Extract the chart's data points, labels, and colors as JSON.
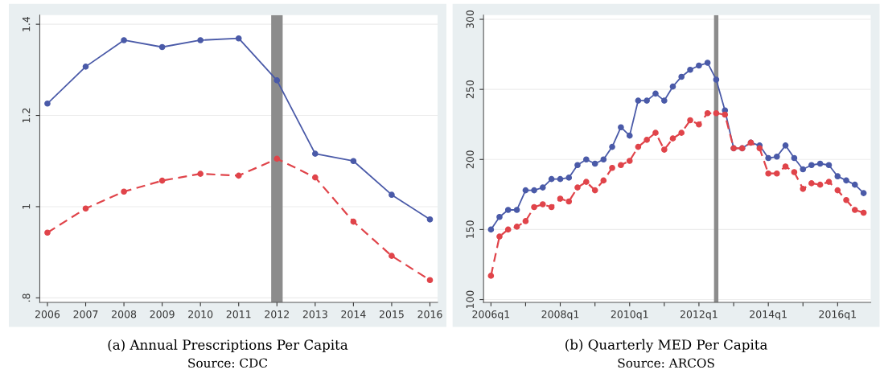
{
  "chart_data": [
    {
      "type": "line",
      "annotations": [
        "(a) Annual Prescriptions Per Capita",
        "Source: CDC"
      ],
      "x": [
        2006,
        2007,
        2008,
        2009,
        2010,
        2011,
        2012,
        2013,
        2014,
        2015,
        2016
      ],
      "series": [
        {
          "color": "#4a5aa8",
          "line_style": "solid",
          "values": [
            1.226,
            1.307,
            1.365,
            1.35,
            1.365,
            1.369,
            1.277,
            1.116,
            1.1,
            1.026,
            0.972
          ]
        },
        {
          "color": "#e0444a",
          "line_style": "dashed",
          "values": [
            0.943,
            0.996,
            1.033,
            1.057,
            1.072,
            1.068,
            1.105,
            1.064,
            0.967,
            0.892,
            0.839
          ]
        }
      ],
      "marker": "circle",
      "grid": "y",
      "xlim": [
        2005.8,
        2016.2
      ],
      "xticks": [
        2006,
        2007,
        2008,
        2009,
        2010,
        2011,
        2012,
        2013,
        2014,
        2015,
        2016
      ],
      "ylim": [
        0.79,
        1.42
      ],
      "yticks": [
        {
          "value": 0.8,
          "label": ".8"
        },
        1,
        1.2,
        1.4
      ],
      "bands": [
        {
          "axis": "x",
          "from": 2011.85,
          "to": 2012.15,
          "color": "#8c8c8c"
        }
      ]
    },
    {
      "type": "line",
      "annotations": [
        "(b) Quarterly MED Per Capita",
        "Source: ARCOS"
      ],
      "x": [
        "2006-01",
        "2006-04",
        "2006-07",
        "2006-10",
        "2007-01",
        "2007-04",
        "2007-07",
        "2007-10",
        "2008-01",
        "2008-04",
        "2008-07",
        "2008-10",
        "2009-01",
        "2009-04",
        "2009-07",
        "2009-10",
        "2010-01",
        "2010-04",
        "2010-07",
        "2010-10",
        "2011-01",
        "2011-04",
        "2011-07",
        "2011-10",
        "2012-01",
        "2012-04",
        "2012-07",
        "2012-10",
        "2013-01",
        "2013-04",
        "2013-07",
        "2013-10",
        "2014-01",
        "2014-04",
        "2014-07",
        "2014-10",
        "2015-01",
        "2015-04",
        "2015-07",
        "2015-10",
        "2016-01",
        "2016-04",
        "2016-07",
        "2016-10"
      ],
      "series": [
        {
          "color": "#4a5aa8",
          "line_style": "solid",
          "values": [
            150,
            159,
            164,
            164,
            178,
            178,
            180,
            186,
            186,
            187,
            196,
            200,
            197,
            200,
            209,
            223,
            217,
            242,
            242,
            247,
            242,
            252,
            259,
            264,
            267,
            269,
            257,
            235,
            208,
            208,
            212,
            210,
            201,
            202,
            210,
            201,
            193,
            196,
            197,
            196,
            188,
            185,
            182,
            176
          ]
        },
        {
          "color": "#e0444a",
          "line_style": "dashed",
          "values": [
            117,
            145,
            150,
            152,
            156,
            166,
            168,
            166,
            172,
            170,
            180,
            184,
            178,
            185,
            194,
            196,
            199,
            209,
            214,
            219,
            207,
            215,
            219,
            228,
            225,
            233,
            233,
            232,
            208,
            208,
            212,
            208,
            190,
            190,
            195,
            191,
            179,
            183,
            182,
            184,
            178,
            171,
            164,
            162
          ]
        }
      ],
      "marker": "circle",
      "grid": "y",
      "xlim": [
        "2005-10-15",
        "2016-12-15"
      ],
      "xticks": [
        {
          "value": "2006-01",
          "label": "2006q1"
        },
        {
          "value": "2007-01",
          "label": null
        },
        {
          "value": "2008-01",
          "label": "2008q1"
        },
        {
          "value": "2009-01",
          "label": null
        },
        {
          "value": "2010-01",
          "label": "2010q1"
        },
        {
          "value": "2011-01",
          "label": null
        },
        {
          "value": "2012-01",
          "label": "2012q1"
        },
        {
          "value": "2013-01",
          "label": null
        },
        {
          "value": "2014-01",
          "label": "2014q1"
        },
        {
          "value": "2015-01",
          "label": null
        },
        {
          "value": "2016-01",
          "label": "2016q1"
        }
      ],
      "ylim": [
        98,
        303
      ],
      "yticks": [
        100,
        150,
        200,
        250,
        300
      ],
      "bands": [
        {
          "axis": "x",
          "from": "2012-06-08",
          "to": "2012-07-24",
          "color": "#8c8c8c"
        }
      ]
    }
  ]
}
